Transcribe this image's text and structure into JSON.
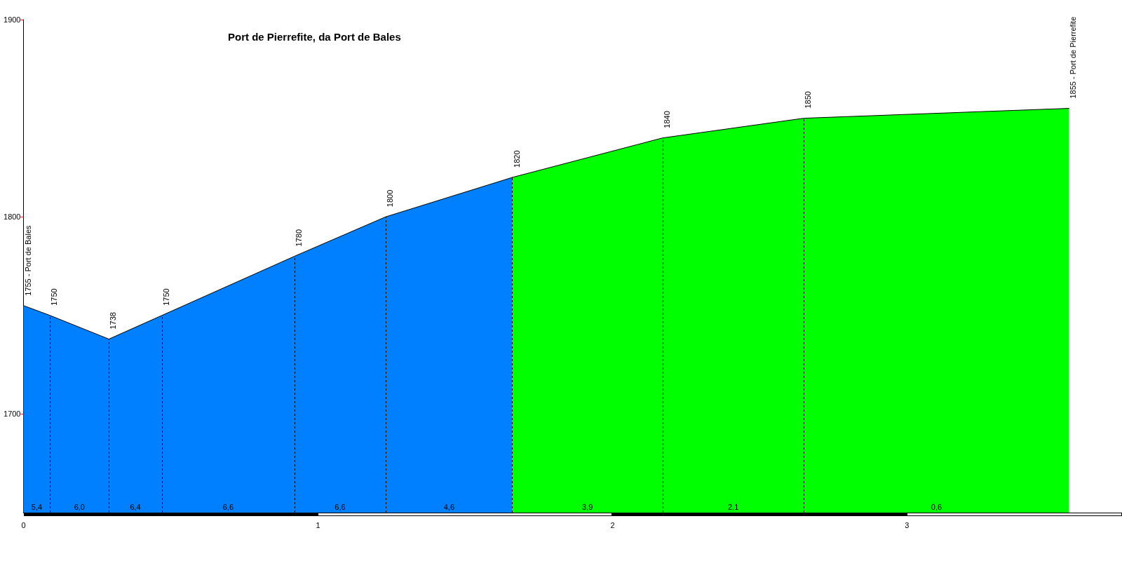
{
  "chart_data": {
    "type": "area",
    "title": "Port de Pierrefite, da Port de Bales",
    "series": [
      {
        "color": "#0080ff",
        "x": [
          0,
          0.09,
          0.29,
          0.47,
          0.92,
          1.23,
          1.66
        ],
        "values": [
          1755,
          1750,
          1738,
          1750,
          1780,
          1800,
          1820
        ],
        "value_labels": [
          "1755 - Port de Bales",
          "1750",
          "1738",
          "1750",
          "1780",
          "1800",
          "1820"
        ]
      },
      {
        "color": "#00ff00",
        "x": [
          1.66,
          2.17,
          2.65,
          3.55
        ],
        "values": [
          1820,
          1840,
          1850,
          1855
        ],
        "value_labels": [
          null,
          "1840",
          "1850",
          "1855 - Port de Pierrefite"
        ]
      }
    ],
    "xlim": [
      0,
      3.73
    ],
    "ylim": [
      1650,
      1900
    ],
    "xticks": [
      0,
      1,
      2,
      3
    ],
    "yticks": [
      1700,
      1800,
      1900
    ],
    "ref_lines": [
      {
        "axis": "x",
        "value": 0.09,
        "color": "#000000",
        "line_style": "dashed"
      },
      {
        "axis": "x",
        "value": 0.29,
        "color": "#000000",
        "line_style": "dashed"
      },
      {
        "axis": "x",
        "value": 0.47,
        "color": "#000000",
        "line_style": "dashed"
      },
      {
        "axis": "x",
        "value": 0.92,
        "color": "#000000",
        "line_style": "dashed"
      },
      {
        "axis": "x",
        "value": 1.23,
        "color": "#000000",
        "line_style": "dashed"
      },
      {
        "axis": "x",
        "value": 1.66,
        "color": "#000000",
        "line_style": "dashed"
      },
      {
        "axis": "x",
        "value": 2.17,
        "color": "#000000",
        "line_style": "dashed"
      },
      {
        "axis": "x",
        "value": 2.65,
        "color": "#000000",
        "line_style": "dashed"
      }
    ],
    "annotations": [
      "5,4",
      "6,0",
      "6,4",
      "6,6",
      "6,6",
      "4,6",
      "3,9",
      "2,1",
      "0,6"
    ]
  }
}
